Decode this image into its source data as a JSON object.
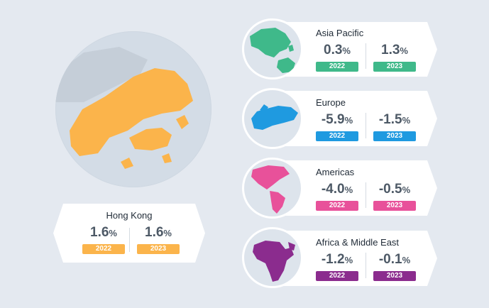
{
  "colors": {
    "hong_kong": "#fbb44b",
    "asia_pacific": "#3fb98a",
    "europe": "#1f9ae0",
    "americas": "#e8519a",
    "africa_middle_east": "#8b2c8e"
  },
  "hong_kong": {
    "name": "Hong Kong",
    "stats": [
      {
        "value": "1.6",
        "unit": "%",
        "year": "2022"
      },
      {
        "value": "1.6",
        "unit": "%",
        "year": "2023"
      }
    ]
  },
  "regions": [
    {
      "name": "Asia Pacific",
      "stats": [
        {
          "value": "0.3",
          "unit": "%",
          "year": "2022"
        },
        {
          "value": "1.3",
          "unit": "%",
          "year": "2023"
        }
      ]
    },
    {
      "name": "Europe",
      "stats": [
        {
          "value": "-5.9",
          "unit": "%",
          "year": "2022"
        },
        {
          "value": "-1.5",
          "unit": "%",
          "year": "2023"
        }
      ]
    },
    {
      "name": "Americas",
      "stats": [
        {
          "value": "-4.0",
          "unit": "%",
          "year": "2022"
        },
        {
          "value": "-0.5",
          "unit": "%",
          "year": "2023"
        }
      ]
    },
    {
      "name": "Africa & Middle East",
      "stats": [
        {
          "value": "-1.2",
          "unit": "%",
          "year": "2022"
        },
        {
          "value": "-0.1",
          "unit": "%",
          "year": "2023"
        }
      ]
    }
  ]
}
